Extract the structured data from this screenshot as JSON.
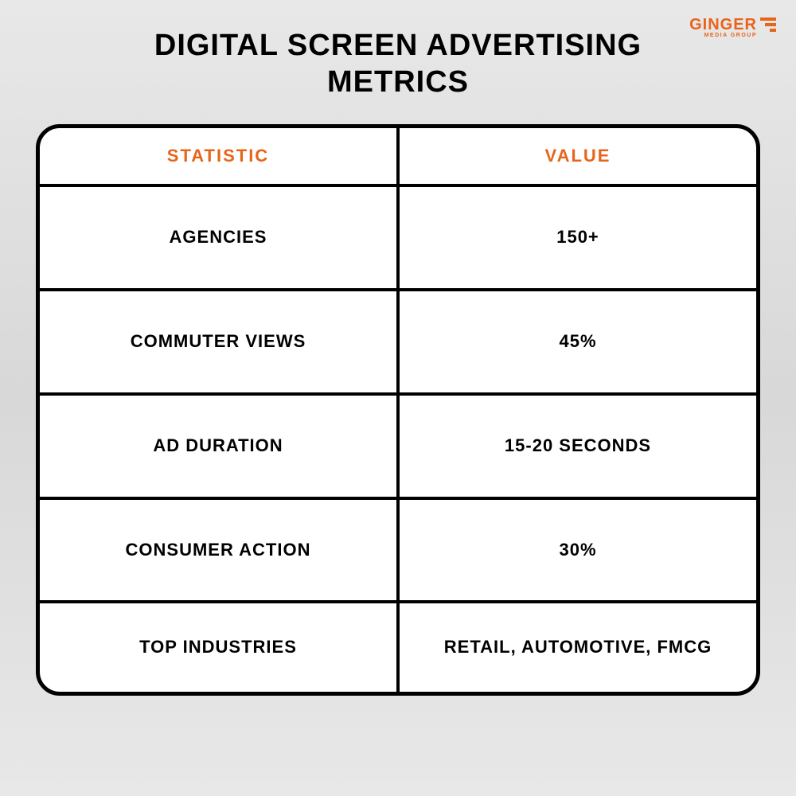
{
  "logo": {
    "name": "GINGER",
    "subtitle": "MEDIA GROUP"
  },
  "title_line1": "DIGITAL SCREEN ADVERTISING",
  "title_line2": "METRICS",
  "table": {
    "type": "table",
    "header_color": "#e8641a",
    "border_color": "#000000",
    "background_color": "#ffffff",
    "columns": [
      "STATISTIC",
      "VALUE"
    ],
    "rows": [
      {
        "statistic": "AGENCIES",
        "value": "150+"
      },
      {
        "statistic": "COMMUTER VIEWS",
        "value": "45%"
      },
      {
        "statistic": "AD DURATION",
        "value": "15-20 SECONDS"
      },
      {
        "statistic": "CONSUMER ACTION",
        "value": "30%"
      },
      {
        "statistic": "TOP INDUSTRIES",
        "value": "RETAIL, AUTOMOTIVE, FMCG"
      }
    ]
  },
  "colors": {
    "accent": "#e8641a",
    "text": "#000000",
    "page_bg_top": "#e8e8e8",
    "page_bg_mid": "#d8d8d8"
  }
}
